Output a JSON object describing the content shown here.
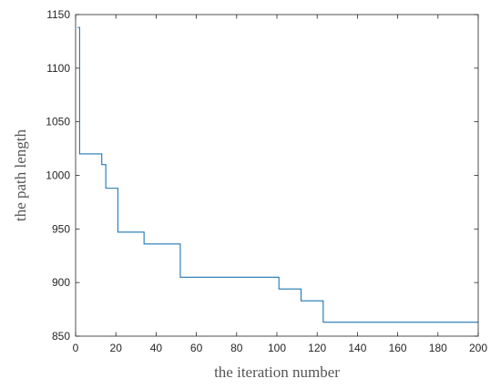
{
  "chart_data": {
    "type": "line",
    "title": "",
    "xlabel": "the iteration number",
    "ylabel": "the path length",
    "xlim": [
      0,
      200
    ],
    "ylim": [
      850,
      1150
    ],
    "xticks": [
      0,
      20,
      40,
      60,
      80,
      100,
      120,
      140,
      160,
      180,
      200
    ],
    "yticks": [
      850,
      900,
      950,
      1000,
      1050,
      1100,
      1150
    ],
    "grid": false,
    "legend": "none",
    "line_color": "#1f77b4",
    "step": true,
    "series": [
      {
        "x": [
          1,
          2,
          3,
          12,
          13,
          15,
          21,
          34,
          52,
          53,
          101,
          112,
          123,
          200
        ],
        "y": [
          1138,
          1020,
          1020,
          1020,
          1010,
          988,
          947,
          936,
          905,
          905,
          894,
          883,
          863,
          863
        ]
      }
    ]
  }
}
